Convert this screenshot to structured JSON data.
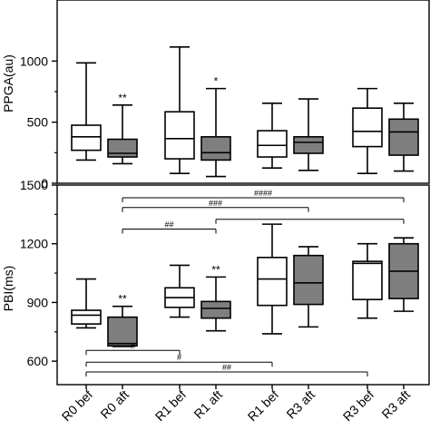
{
  "chart_data": [
    {
      "type": "box",
      "ylabel": "PPGA(au)",
      "ylim": [
        0,
        1500
      ],
      "yticks": [
        0,
        500,
        1000
      ],
      "categories": [
        "R0 bef",
        "R0 aft",
        "R1 bef",
        "R1 aft",
        "R1 bef",
        "R3 aft",
        "R3 bef",
        "R3 aft"
      ],
      "boxes": [
        {
          "min": 190,
          "q1": 270,
          "median": 380,
          "q3": 475,
          "max": 985,
          "fill": "white",
          "annotation": ""
        },
        {
          "min": 160,
          "q1": 215,
          "median": 245,
          "q3": 360,
          "max": 640,
          "fill": "gray",
          "annotation": "**"
        },
        {
          "min": 80,
          "q1": 200,
          "median": 365,
          "q3": 585,
          "max": 1115,
          "fill": "white",
          "annotation": ""
        },
        {
          "min": 55,
          "q1": 190,
          "median": 250,
          "q3": 380,
          "max": 775,
          "fill": "gray",
          "annotation": "*"
        },
        {
          "min": 125,
          "q1": 215,
          "median": 310,
          "q3": 430,
          "max": 655,
          "fill": "white",
          "annotation": ""
        },
        {
          "min": 105,
          "q1": 245,
          "median": 335,
          "q3": 380,
          "max": 690,
          "fill": "gray",
          "annotation": ""
        },
        {
          "min": 80,
          "q1": 300,
          "median": 425,
          "q3": 615,
          "max": 775,
          "fill": "white",
          "annotation": ""
        },
        {
          "min": 100,
          "q1": 230,
          "median": 420,
          "q3": 525,
          "max": 655,
          "fill": "gray",
          "annotation": ""
        }
      ],
      "brackets": []
    },
    {
      "type": "box",
      "ylabel": "PBI(ms)",
      "ylim": [
        480,
        1500
      ],
      "yticks": [
        600,
        900,
        1200,
        1500
      ],
      "categories": [
        "R0 bef",
        "R0 aft",
        "R1 bef",
        "R1 aft",
        "R1 bef",
        "R3 aft",
        "R3 bef",
        "R3 aft"
      ],
      "boxes": [
        {
          "min": 770,
          "q1": 790,
          "median": 835,
          "q3": 860,
          "max": 1020,
          "fill": "white",
          "annotation": ""
        },
        {
          "min": 675,
          "q1": 678,
          "median": 690,
          "q3": 825,
          "max": 880,
          "fill": "gray",
          "annotation": "**"
        },
        {
          "min": 825,
          "q1": 875,
          "median": 925,
          "q3": 975,
          "max": 1090,
          "fill": "white",
          "annotation": ""
        },
        {
          "min": 755,
          "q1": 820,
          "median": 870,
          "q3": 905,
          "max": 1030,
          "fill": "gray",
          "annotation": "**"
        },
        {
          "min": 740,
          "q1": 885,
          "median": 1020,
          "q3": 1130,
          "max": 1300,
          "fill": "white",
          "annotation": ""
        },
        {
          "min": 775,
          "q1": 890,
          "median": 1000,
          "q3": 1140,
          "max": 1185,
          "fill": "gray",
          "annotation": ""
        },
        {
          "min": 820,
          "q1": 915,
          "median": 1100,
          "q3": 1110,
          "max": 1200,
          "fill": "white",
          "annotation": ""
        },
        {
          "min": 855,
          "q1": 920,
          "median": 1060,
          "q3": 1200,
          "max": 1230,
          "fill": "gray",
          "annotation": ""
        }
      ],
      "brackets": [
        {
          "from": 1,
          "to": 7,
          "y": 1435,
          "label": "####"
        },
        {
          "from": 1,
          "to": 5,
          "y": 1385,
          "label": "###"
        },
        {
          "from": 1,
          "to": 3,
          "y": 1275,
          "label": "##"
        },
        {
          "from": 3,
          "to": 7,
          "y": 1325,
          "label": ""
        },
        {
          "from": 0,
          "to": 2,
          "y": 655,
          "label": "#"
        },
        {
          "from": 0,
          "to": 4,
          "y": 595,
          "label": "#"
        },
        {
          "from": 0,
          "to": 6,
          "y": 545,
          "label": "##"
        }
      ]
    }
  ]
}
